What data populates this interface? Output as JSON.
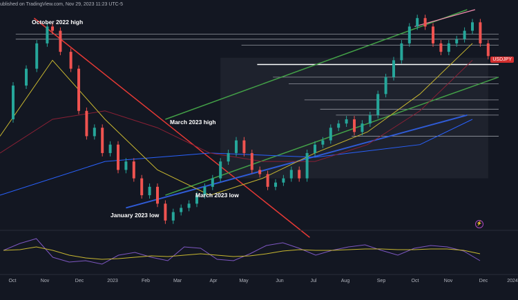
{
  "header": {
    "source": "ublished on TradingView.com, Nov 29, 2023 11:23 UTC-5"
  },
  "pair_tag": "USDJPY",
  "annotations": {
    "october_high": "October 2022 high",
    "march_high": "March 2023 high",
    "march_low": "March 2023 low",
    "january_low": "January 2023 low"
  },
  "colors": {
    "background": "#131722",
    "up_candle": "#26a69a",
    "down_candle": "#ef5350",
    "ma_short": "#c9b830",
    "ma_mid": "#8a2035",
    "ma_long": "#2962ff",
    "channel": "#43a047",
    "support_line": "#2f5bd6",
    "downtrend": "#e53935",
    "upper_line": "#f48fb1",
    "rsi": "#7e57c2"
  },
  "chart_data": {
    "type": "candlestick",
    "x": [
      "Oct",
      "Nov",
      "Dec",
      "2023",
      "Feb",
      "Mar",
      "Apr",
      "May",
      "Jun",
      "Jul",
      "Aug",
      "Sep",
      "Oct",
      "Nov",
      "Dec",
      "2024"
    ],
    "x_axis_labels": [
      "Oct",
      "Nov",
      "Dec",
      "2023",
      "Feb",
      "Mar",
      "Apr",
      "May",
      "Jun",
      "Jul",
      "Aug",
      "Sep",
      "Oct",
      "Nov",
      "Dec",
      "2024"
    ],
    "price_path": [
      [
        0,
        140
      ],
      [
        5,
        144
      ],
      [
        10,
        146
      ],
      [
        14,
        149
      ],
      [
        18,
        151
      ],
      [
        20,
        150.5
      ],
      [
        23,
        148
      ],
      [
        27,
        146
      ],
      [
        30,
        141
      ],
      [
        33,
        138
      ],
      [
        36,
        139
      ],
      [
        39,
        136
      ],
      [
        42,
        137
      ],
      [
        45,
        134
      ],
      [
        48,
        135
      ],
      [
        51,
        133
      ],
      [
        54,
        131
      ],
      [
        57,
        132
      ],
      [
        60,
        130
      ],
      [
        63,
        128
      ],
      [
        66,
        129
      ],
      [
        69,
        129.5
      ],
      [
        72,
        130
      ],
      [
        75,
        131
      ],
      [
        78,
        132
      ],
      [
        81,
        133
      ],
      [
        84,
        135
      ],
      [
        87,
        136
      ],
      [
        90,
        137.5
      ],
      [
        93,
        136
      ],
      [
        96,
        134
      ],
      [
        99,
        133.5
      ],
      [
        102,
        132
      ],
      [
        105,
        132.5
      ],
      [
        108,
        133
      ],
      [
        111,
        134
      ],
      [
        114,
        133
      ],
      [
        117,
        136
      ],
      [
        120,
        137
      ],
      [
        123,
        137.5
      ],
      [
        126,
        139
      ],
      [
        129,
        139.5
      ],
      [
        132,
        140
      ],
      [
        135,
        138.5
      ],
      [
        138,
        139.5
      ],
      [
        141,
        140.5
      ],
      [
        144,
        143
      ],
      [
        147,
        145
      ],
      [
        150,
        147
      ],
      [
        153,
        149
      ],
      [
        156,
        151
      ],
      [
        159,
        152
      ],
      [
        162,
        151
      ],
      [
        165,
        149
      ],
      [
        168,
        148
      ],
      [
        171,
        149
      ],
      [
        174,
        149.5
      ],
      [
        177,
        150.5
      ],
      [
        180,
        151.5
      ],
      [
        183,
        149
      ],
      [
        186,
        147.5
      ]
    ],
    "ma_short": [
      [
        0,
        138
      ],
      [
        20,
        147
      ],
      [
        40,
        140
      ],
      [
        60,
        134
      ],
      [
        80,
        131
      ],
      [
        100,
        133
      ],
      [
        120,
        136
      ],
      [
        140,
        138.5
      ],
      [
        160,
        143
      ],
      [
        180,
        149
      ]
    ],
    "ma_mid": [
      [
        0,
        136
      ],
      [
        20,
        140
      ],
      [
        40,
        141
      ],
      [
        60,
        139
      ],
      [
        80,
        136
      ],
      [
        100,
        135
      ],
      [
        120,
        135
      ],
      [
        140,
        137
      ],
      [
        160,
        141
      ],
      [
        180,
        147
      ]
    ],
    "ma_long": [
      [
        0,
        131
      ],
      [
        40,
        135
      ],
      [
        80,
        136
      ],
      [
        120,
        135.5
      ],
      [
        160,
        137
      ],
      [
        180,
        140
      ]
    ],
    "rsi": [
      55,
      65,
      72,
      45,
      38,
      40,
      35,
      48,
      52,
      45,
      40,
      60,
      58,
      42,
      40,
      50,
      62,
      66,
      58,
      48,
      55,
      60,
      63,
      55,
      48,
      58,
      62,
      60,
      54,
      40
    ],
    "rsi_ma": [
      55,
      56,
      60,
      55,
      48,
      44,
      42,
      43,
      45,
      47,
      46,
      48,
      50,
      48,
      46,
      47,
      50,
      54,
      56,
      55,
      55,
      56,
      57,
      57,
      56,
      56,
      57,
      57,
      55,
      50
    ],
    "resistance_levels": [
      150.1,
      149.5,
      148.8,
      146.5,
      145.0,
      144.2,
      142.3,
      141.2,
      140.5,
      138.0
    ],
    "ylim": [
      127,
      153
    ],
    "xlim": [
      0,
      190
    ],
    "grid": false
  }
}
